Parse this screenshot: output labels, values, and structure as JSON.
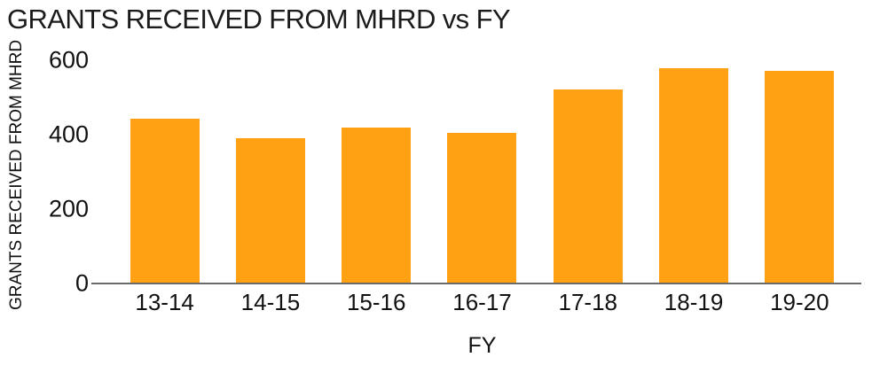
{
  "chart_data": {
    "type": "bar",
    "title": "GRANTS RECEIVED FROM MHRD vs FY",
    "categories": [
      "13-14",
      "14-15",
      "15-16",
      "16-17",
      "17-18",
      "18-19",
      "19-20"
    ],
    "values": [
      444,
      390,
      418,
      404,
      521,
      579,
      571
    ],
    "xlabel": "FY",
    "ylabel": "GRANTS RECEIVED FROM MHRD",
    "ylim": [
      0,
      600
    ],
    "yticks": [
      0,
      200,
      400,
      600
    ],
    "grid": false,
    "legend_position": "none",
    "bar_color": "#ffa113",
    "axis_line_color": "#6a6a6a",
    "text_color": "#111111",
    "title_color": "#1b1b1b",
    "background_color": "#ffffff"
  }
}
